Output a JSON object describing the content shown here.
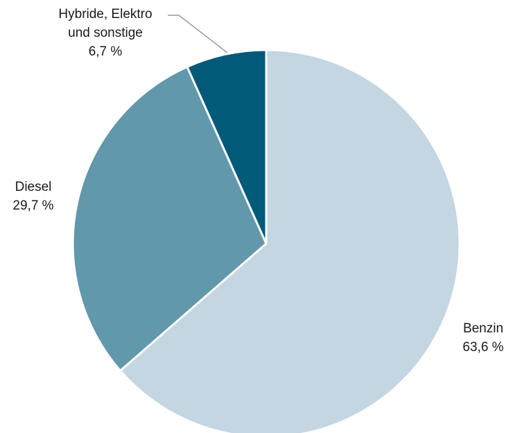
{
  "chart_data": {
    "type": "pie",
    "title": "",
    "start_angle_deg": 0,
    "direction": "clockwise",
    "slices": [
      {
        "label": "Benzin",
        "value": 63.6,
        "value_label": "63,6 %",
        "color": "#c3d6e2"
      },
      {
        "label": "Diesel",
        "value": 29.7,
        "value_label": "29,7 %",
        "color": "#6198ab"
      },
      {
        "label_lines": [
          "Hybride, Elektro",
          "und sonstige"
        ],
        "value": 6.7,
        "value_label": "6,7 %",
        "color": "#005a78"
      }
    ]
  }
}
